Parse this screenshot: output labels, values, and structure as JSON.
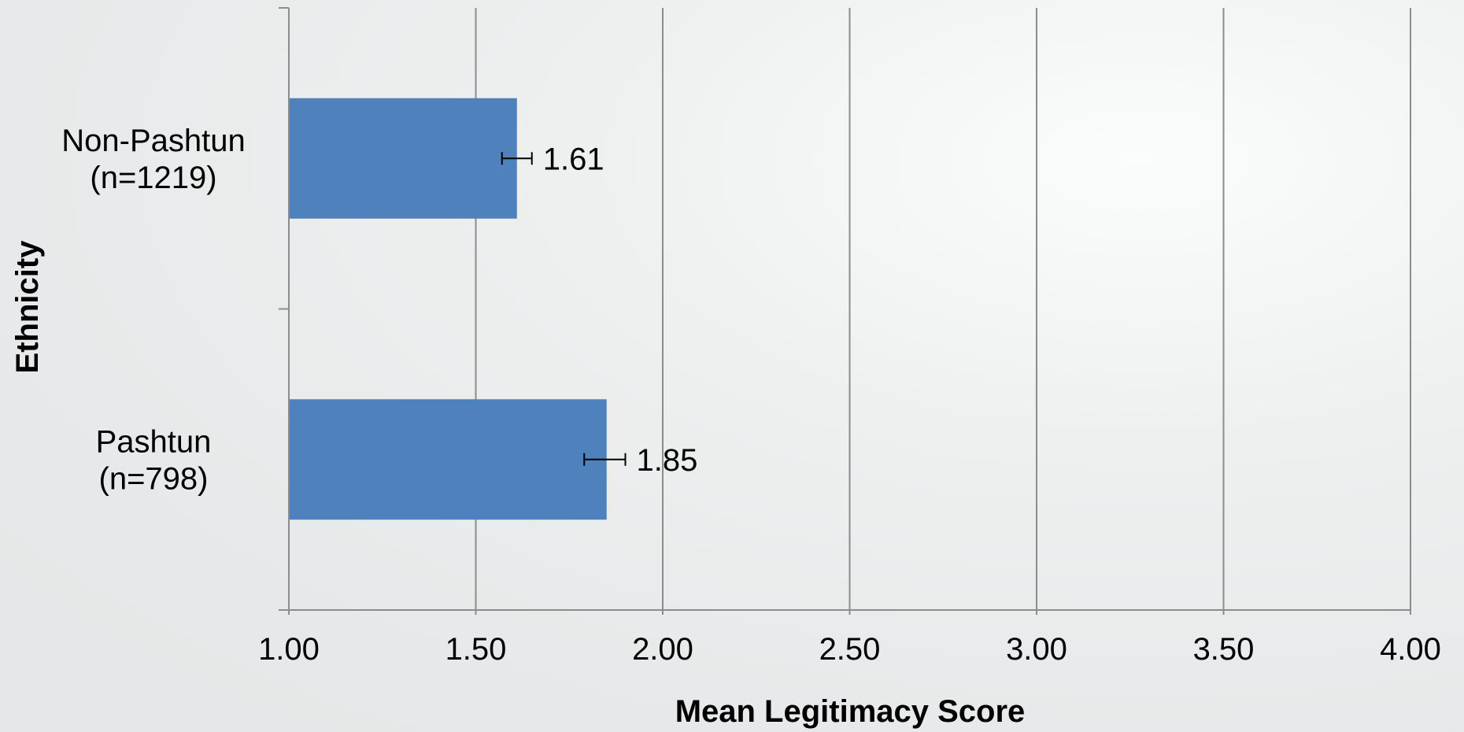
{
  "chart_data": {
    "type": "bar",
    "orientation": "horizontal",
    "categories": [
      "Non-Pashtun\n(n=1219)",
      "Pashtun\n(n=798)"
    ],
    "values": [
      1.61,
      1.85
    ],
    "error_bars": [
      {
        "low": 1.57,
        "high": 1.65
      },
      {
        "low": 1.79,
        "high": 1.9
      }
    ],
    "data_labels": [
      "1.61",
      "1.85"
    ],
    "xlabel": "Mean Legitimacy Score",
    "ylabel": "Ethnicity",
    "xlim": [
      1.0,
      4.0
    ],
    "xticks": [
      "1.00",
      "1.50",
      "2.00",
      "2.50",
      "3.00",
      "3.50",
      "4.00"
    ],
    "grid": "vertical",
    "bar_color": "#4f81bd",
    "grid_color": "#8c8c8c",
    "axis_color": "#8c8c8c"
  }
}
